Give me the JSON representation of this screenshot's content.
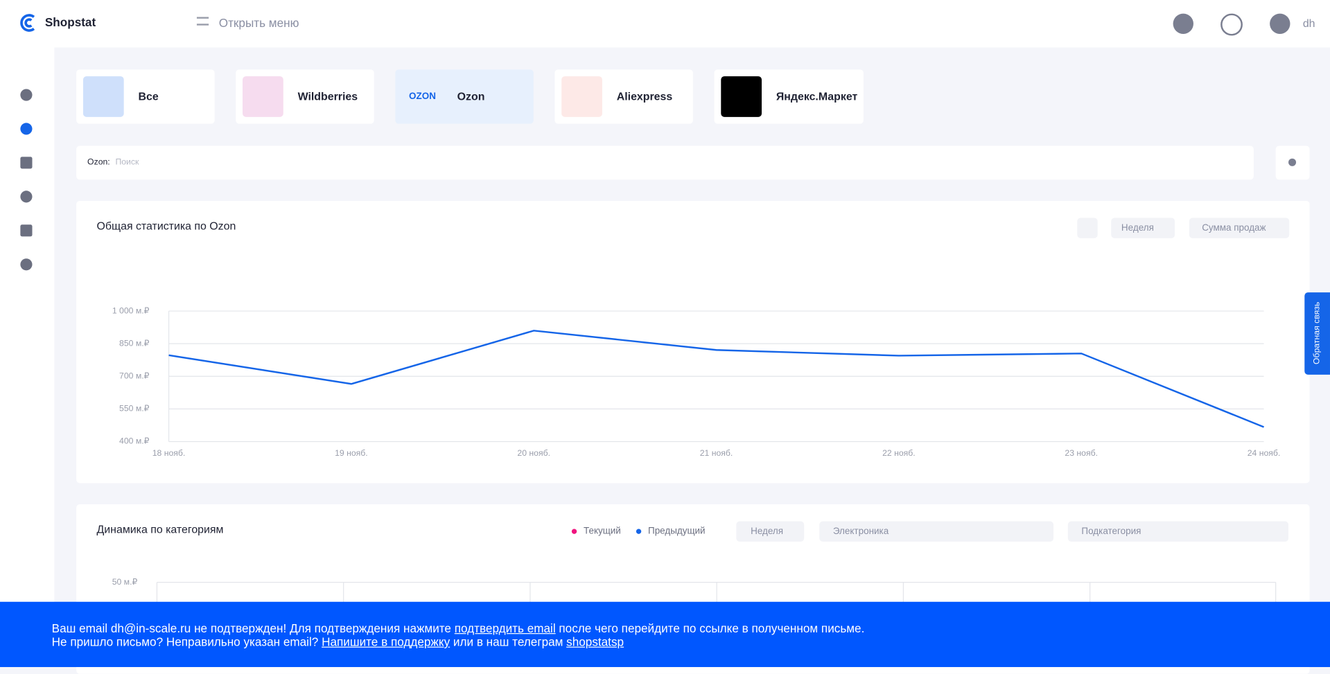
{
  "header": {
    "logo": "Shopstat",
    "menu": "Открыть меню",
    "user": "dh"
  },
  "markets": [
    "Все",
    "Wildberries",
    "Ozon",
    "Aliexpress",
    "Яндекс.Маркет"
  ],
  "search": {
    "prefix": "Ozon:",
    "placeholder": "Поиск"
  },
  "card1": {
    "controls": [
      "Неделя",
      "Сумма продаж"
    ]
  },
  "card2": {
    "title": "Динамика по категориям",
    "controls": [
      "Неделя",
      "Электроника",
      "Подкатегория"
    ]
  },
  "feedback": "Обратная связь",
  "banner": {
    "line1": [
      "Ваш email dh@in-scale.ru не подтвержден! Для подтверждения нажмите ",
      "подтвердить email",
      " после чего перейдите по ссылке в полученном письме."
    ],
    "line2": [
      "Не пришло письмо? Неправильно указан email? ",
      "Напишите в поддержку",
      " или в наш телеграм ",
      "shopstatsp"
    ]
  },
  "chart_data": [
    {
      "type": "line",
      "title": "Общая статистика по Ozon",
      "categories": [
        "18 нояб.",
        "19 нояб.",
        "20 нояб.",
        "21 нояб.",
        "22 нояб.",
        "23 нояб.",
        "24 нояб."
      ],
      "series": [
        {
          "name": null,
          "color": "#1565e8",
          "values": [
            797,
            665,
            910,
            821,
            795,
            805,
            467
          ]
        }
      ],
      "ylim": [
        400,
        1000
      ],
      "yticks": [
        {
          "value": 400,
          "label": "400 м.₽"
        },
        {
          "value": 550,
          "label": "550 м.₽"
        },
        {
          "value": 700,
          "label": "700 м.₽"
        },
        {
          "value": 850,
          "label": "850 м.₽"
        },
        {
          "value": 1000,
          "label": "1 000 м.₽"
        }
      ],
      "grid": true
    },
    {
      "type": "line",
      "title": null,
      "series": [
        {
          "name": "Текущий",
          "color": "#f0147f",
          "values": []
        },
        {
          "name": "Предыдущий",
          "color": "#1565e8",
          "values": []
        }
      ],
      "yticks": [
        {
          "value": 50,
          "label": "50 м.₽"
        }
      ],
      "grid": true
    }
  ]
}
